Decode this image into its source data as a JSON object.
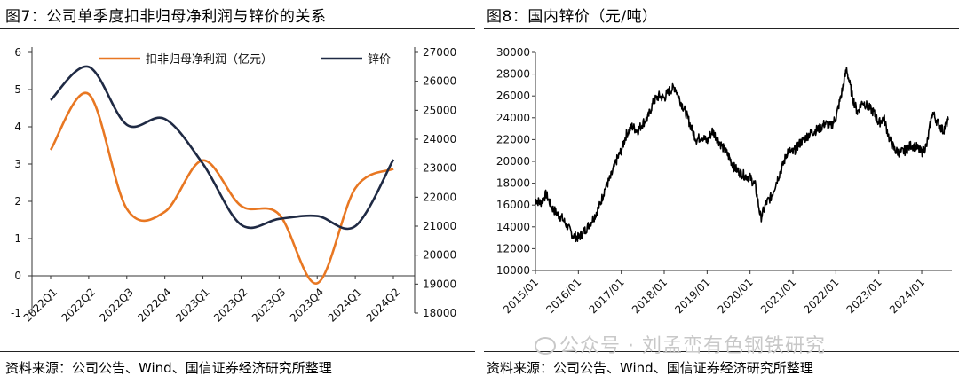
{
  "left": {
    "title": "图7：公司单季度扣非归母净利润与锌价的关系",
    "source": "资料来源：公司公告、Wind、国信证券经济研究所整理"
  },
  "right": {
    "title": "图8：国内锌价（元/吨）",
    "source": "资料来源：公司公告、Wind、国信证券经济研究所整理"
  },
  "watermark": "公众号 · 刘孟峦有色钢铁研究",
  "chart_data": [
    {
      "type": "line",
      "title": "图7：公司单季度扣非归母净利润与锌价的关系",
      "categories": [
        "2022Q1",
        "2022Q2",
        "2022Q3",
        "2022Q4",
        "2023Q1",
        "2023Q2",
        "2023Q3",
        "2023Q4",
        "2024Q1",
        "2024Q2"
      ],
      "left_ylim": [
        -1,
        6
      ],
      "left_yticks": [
        "-1",
        "0",
        "1",
        "2",
        "3",
        "4",
        "5",
        "6"
      ],
      "right_ylim": [
        18000,
        27000
      ],
      "right_yticks": [
        "18000",
        "19000",
        "20000",
        "21000",
        "22000",
        "23000",
        "24000",
        "25000",
        "26000",
        "27000"
      ],
      "legend_placement": "top",
      "series": [
        {
          "name": "扣非归母净利润（亿元）",
          "axis": "left",
          "color": "#E87722",
          "values": [
            3.38,
            4.88,
            1.8,
            1.72,
            3.1,
            1.88,
            1.65,
            -0.2,
            2.35,
            2.87
          ]
        },
        {
          "name": "锌价",
          "axis": "right",
          "color": "#1F2A44",
          "values": [
            25350,
            26500,
            24500,
            24700,
            23150,
            21050,
            21250,
            21350,
            21000,
            23300
          ]
        }
      ]
    },
    {
      "type": "line",
      "title": "图8：国内锌价（元/吨）",
      "x_range": [
        "2015-01",
        "2024-08"
      ],
      "xticks": [
        "2015/01",
        "2016/01",
        "2017/01",
        "2018/01",
        "2019/01",
        "2020/01",
        "2021/01",
        "2022/01",
        "2023/01",
        "2024/01"
      ],
      "ylim": [
        10000,
        30000
      ],
      "yticks": [
        "10000",
        "12000",
        "14000",
        "16000",
        "18000",
        "20000",
        "22000",
        "24000",
        "26000",
        "28000",
        "30000"
      ],
      "series": [
        {
          "color": "#000000",
          "x": [
            2015.0,
            2015.12,
            2015.25,
            2015.38,
            2015.5,
            2015.62,
            2015.75,
            2015.88,
            2016.0,
            2016.12,
            2016.25,
            2016.38,
            2016.5,
            2016.62,
            2016.75,
            2016.88,
            2017.0,
            2017.12,
            2017.25,
            2017.38,
            2017.5,
            2017.62,
            2017.75,
            2017.88,
            2018.0,
            2018.12,
            2018.25,
            2018.38,
            2018.5,
            2018.62,
            2018.75,
            2018.88,
            2019.0,
            2019.12,
            2019.25,
            2019.38,
            2019.5,
            2019.62,
            2019.75,
            2019.88,
            2020.0,
            2020.12,
            2020.25,
            2020.38,
            2020.5,
            2020.62,
            2020.75,
            2020.88,
            2021.0,
            2021.12,
            2021.25,
            2021.38,
            2021.5,
            2021.62,
            2021.75,
            2021.88,
            2022.0,
            2022.12,
            2022.25,
            2022.38,
            2022.5,
            2022.62,
            2022.75,
            2022.88,
            2023.0,
            2023.12,
            2023.25,
            2023.38,
            2023.5,
            2023.62,
            2023.75,
            2023.88,
            2024.0,
            2024.12,
            2024.25,
            2024.38,
            2024.5,
            2024.62
          ],
          "y": [
            16500,
            16200,
            17000,
            15800,
            15200,
            14800,
            14000,
            13200,
            13000,
            13500,
            14200,
            15000,
            16000,
            17500,
            18500,
            20000,
            21000,
            22500,
            23200,
            22800,
            23500,
            24000,
            25500,
            26000,
            25800,
            26500,
            26800,
            25500,
            24500,
            23200,
            22000,
            22300,
            21800,
            22800,
            22000,
            21200,
            20500,
            19500,
            19000,
            18700,
            18500,
            17800,
            14800,
            16200,
            16800,
            18200,
            19500,
            21000,
            20800,
            21500,
            22000,
            22500,
            22800,
            23000,
            23500,
            23200,
            24000,
            26000,
            28500,
            26000,
            24500,
            25500,
            25000,
            24500,
            23500,
            24000,
            22000,
            21000,
            20800,
            21000,
            21500,
            21300,
            20800,
            21500,
            24500,
            23500,
            22800,
            23800
          ]
        }
      ]
    }
  ]
}
